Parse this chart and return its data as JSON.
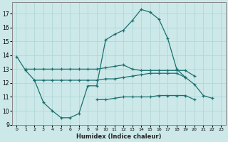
{
  "xlabel": "Humidex (Indice chaleur)",
  "x": [
    0,
    1,
    2,
    3,
    4,
    5,
    6,
    7,
    8,
    9,
    10,
    11,
    12,
    13,
    14,
    15,
    16,
    17,
    18,
    19,
    20,
    21,
    22,
    23
  ],
  "line1": [
    13.9,
    12.9,
    12.2,
    10.6,
    10.0,
    9.5,
    9.5,
    9.8,
    11.8,
    11.8,
    15.1,
    15.5,
    15.8,
    16.5,
    17.3,
    17.1,
    16.6,
    15.2,
    13.0,
    12.4,
    11.9,
    11.1,
    10.9,
    null
  ],
  "line2": [
    null,
    13.0,
    13.0,
    13.0,
    13.0,
    13.0,
    13.0,
    13.0,
    13.0,
    13.0,
    13.1,
    13.2,
    13.3,
    13.0,
    12.9,
    12.9,
    12.9,
    12.9,
    12.9,
    12.9,
    12.5,
    null,
    null,
    null
  ],
  "line3": [
    null,
    null,
    12.2,
    12.2,
    12.2,
    12.2,
    12.2,
    12.2,
    12.2,
    12.2,
    12.3,
    12.3,
    12.4,
    12.5,
    12.6,
    12.7,
    12.7,
    12.7,
    12.7,
    12.4,
    null,
    null,
    null,
    null
  ],
  "line4": [
    null,
    null,
    null,
    null,
    null,
    null,
    null,
    null,
    null,
    10.8,
    10.8,
    10.9,
    11.0,
    11.0,
    11.0,
    11.0,
    11.1,
    11.1,
    11.1,
    11.1,
    10.8,
    null,
    null,
    null
  ],
  "color": "#1a7070",
  "bg_color": "#cce8e8",
  "grid_color": "#b0d8d8",
  "ylim": [
    9,
    17.8
  ],
  "yticks": [
    9,
    10,
    11,
    12,
    13,
    14,
    15,
    16,
    17
  ],
  "xticks": [
    0,
    1,
    2,
    3,
    4,
    5,
    6,
    7,
    8,
    9,
    10,
    11,
    12,
    13,
    14,
    15,
    16,
    17,
    18,
    19,
    20,
    21,
    22,
    23
  ]
}
